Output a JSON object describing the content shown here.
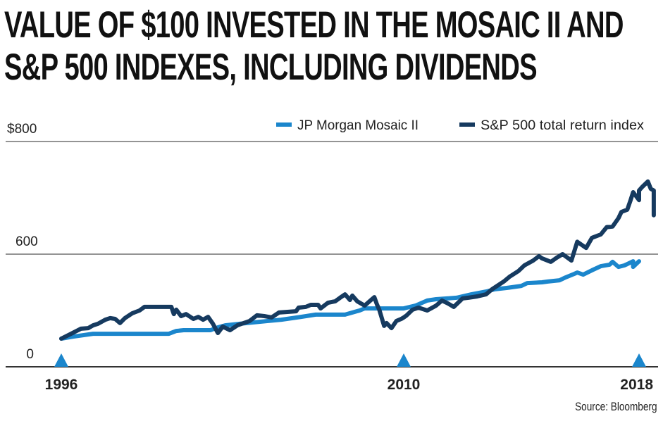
{
  "chart_data": {
    "type": "line",
    "title": "VALUE OF $100 INVESTED IN THE MOSAIC II AND S&P 500 INDEXES, INCLUDING DIVIDENDS",
    "title_lines": [
      "VALUE OF $100 INVESTED IN THE MOSAIC II AND",
      "S&P 500 INDEXES, INCLUDING DIVIDENDS"
    ],
    "xlabel": "",
    "ylabel": "",
    "y_ticks": [
      {
        "value": 800,
        "label": "$800"
      },
      {
        "value": 600,
        "label": "600"
      },
      {
        "value": 0,
        "label": "0"
      }
    ],
    "x_ticks": [
      {
        "value": 1996,
        "label": "1996"
      },
      {
        "value": 2010,
        "label": "2010"
      },
      {
        "value": 2018,
        "label": "2018"
      }
    ],
    "ylim": [
      0,
      800
    ],
    "xlim": [
      1996,
      2018
    ],
    "grid": true,
    "legend_position": "top-right",
    "source": "Source: Bloomberg",
    "series": [
      {
        "name": "JP Morgan Mosaic II",
        "color": "#1B86CC",
        "points": [
          [
            1996.0,
            150
          ],
          [
            1996.5,
            161
          ],
          [
            1997.3,
            176
          ],
          [
            1997.8,
            176
          ],
          [
            2000.4,
            176
          ],
          [
            2000.7,
            191
          ],
          [
            2001.0,
            195
          ],
          [
            2002.1,
            195
          ],
          [
            2002.4,
            210
          ],
          [
            2002.7,
            221
          ],
          [
            2003.3,
            229
          ],
          [
            2003.8,
            236
          ],
          [
            2005.0,
            251
          ],
          [
            2005.8,
            266
          ],
          [
            2006.4,
            278
          ],
          [
            2007.6,
            278
          ],
          [
            2008.2,
            300
          ],
          [
            2008.4,
            311
          ],
          [
            2009.6,
            311
          ],
          [
            2010.0,
            311
          ],
          [
            2010.4,
            326
          ],
          [
            2010.8,
            353
          ],
          [
            2011.1,
            360
          ],
          [
            2011.8,
            368
          ],
          [
            2012.3,
            386
          ],
          [
            2012.8,
            401
          ],
          [
            2013.1,
            413
          ],
          [
            2013.5,
            420
          ],
          [
            2014.0,
            431
          ],
          [
            2014.2,
            446
          ],
          [
            2014.7,
            450
          ],
          [
            2014.9,
            454
          ],
          [
            2015.3,
            461
          ],
          [
            2015.5,
            476
          ],
          [
            2015.8,
            495
          ],
          [
            2015.9,
            502
          ],
          [
            2016.1,
            491
          ],
          [
            2016.4,
            514
          ],
          [
            2016.7,
            536
          ],
          [
            2017.0,
            544
          ],
          [
            2017.1,
            559
          ],
          [
            2017.3,
            532
          ],
          [
            2017.5,
            540
          ],
          [
            2017.6,
            547
          ],
          [
            2017.8,
            562
          ],
          [
            2017.8,
            532
          ],
          [
            2018.0,
            562
          ]
        ]
      },
      {
        "name": "S&P 500 total return index",
        "color": "#163A5F",
        "points": [
          [
            1996.0,
            150
          ],
          [
            1996.4,
            176
          ],
          [
            1996.8,
            203
          ],
          [
            1997.1,
            206
          ],
          [
            1997.3,
            221
          ],
          [
            1997.5,
            229
          ],
          [
            1997.8,
            251
          ],
          [
            1998.0,
            259
          ],
          [
            1998.2,
            255
          ],
          [
            1998.4,
            233
          ],
          [
            1998.6,
            259
          ],
          [
            1998.9,
            285
          ],
          [
            1999.2,
            300
          ],
          [
            1999.4,
            319
          ],
          [
            1999.6,
            319
          ],
          [
            2000.5,
            319
          ],
          [
            2000.6,
            281
          ],
          [
            2000.7,
            304
          ],
          [
            2000.9,
            270
          ],
          [
            2001.1,
            281
          ],
          [
            2001.4,
            255
          ],
          [
            2001.6,
            266
          ],
          [
            2001.8,
            251
          ],
          [
            2002.0,
            266
          ],
          [
            2002.2,
            229
          ],
          [
            2002.4,
            180
          ],
          [
            2002.6,
            214
          ],
          [
            2002.9,
            195
          ],
          [
            2003.2,
            221
          ],
          [
            2003.7,
            244
          ],
          [
            2004.0,
            274
          ],
          [
            2004.3,
            270
          ],
          [
            2004.6,
            263
          ],
          [
            2004.9,
            289
          ],
          [
            2005.3,
            293
          ],
          [
            2005.6,
            296
          ],
          [
            2005.7,
            315
          ],
          [
            2006.0,
            319
          ],
          [
            2006.2,
            330
          ],
          [
            2006.5,
            330
          ],
          [
            2006.6,
            311
          ],
          [
            2006.9,
            341
          ],
          [
            2007.2,
            349
          ],
          [
            2007.4,
            368
          ],
          [
            2007.6,
            386
          ],
          [
            2007.8,
            356
          ],
          [
            2007.9,
            379
          ],
          [
            2008.1,
            349
          ],
          [
            2008.4,
            326
          ],
          [
            2008.7,
            360
          ],
          [
            2008.8,
            371
          ],
          [
            2008.9,
            334
          ],
          [
            2009.0,
            304
          ],
          [
            2009.2,
            218
          ],
          [
            2009.3,
            233
          ],
          [
            2009.5,
            206
          ],
          [
            2009.7,
            244
          ],
          [
            2009.9,
            255
          ],
          [
            2010.0,
            263
          ],
          [
            2010.1,
            274
          ],
          [
            2010.3,
            304
          ],
          [
            2010.5,
            315
          ],
          [
            2010.8,
            300
          ],
          [
            2011.1,
            326
          ],
          [
            2011.3,
            353
          ],
          [
            2011.5,
            338
          ],
          [
            2011.7,
            319
          ],
          [
            2012.0,
            364
          ],
          [
            2012.2,
            368
          ],
          [
            2012.5,
            375
          ],
          [
            2012.8,
            386
          ],
          [
            2013.0,
            413
          ],
          [
            2013.4,
            454
          ],
          [
            2013.6,
            480
          ],
          [
            2013.9,
            510
          ],
          [
            2014.1,
            540
          ],
          [
            2014.4,
            566
          ],
          [
            2014.6,
            589
          ],
          [
            2014.7,
            578
          ],
          [
            2015.0,
            559
          ],
          [
            2015.2,
            581
          ],
          [
            2015.4,
            600
          ],
          [
            2015.7,
            566
          ],
          [
            2015.9,
            622
          ],
          [
            2016.2,
            611
          ],
          [
            2016.3,
            620
          ],
          [
            2016.4,
            629
          ],
          [
            2016.7,
            635
          ],
          [
            2016.9,
            648
          ],
          [
            2017.1,
            649
          ],
          [
            2017.3,
            664
          ],
          [
            2017.4,
            675
          ],
          [
            2017.6,
            679
          ],
          [
            2017.7,
            694
          ],
          [
            2017.8,
            710
          ],
          [
            2018.0,
            696
          ],
          [
            2018.0,
            713
          ],
          [
            2018.1,
            719
          ],
          [
            2018.3,
            729
          ],
          [
            2018.4,
            716
          ],
          [
            2018.5,
            713
          ],
          [
            2018.5,
            669
          ]
        ]
      }
    ]
  }
}
